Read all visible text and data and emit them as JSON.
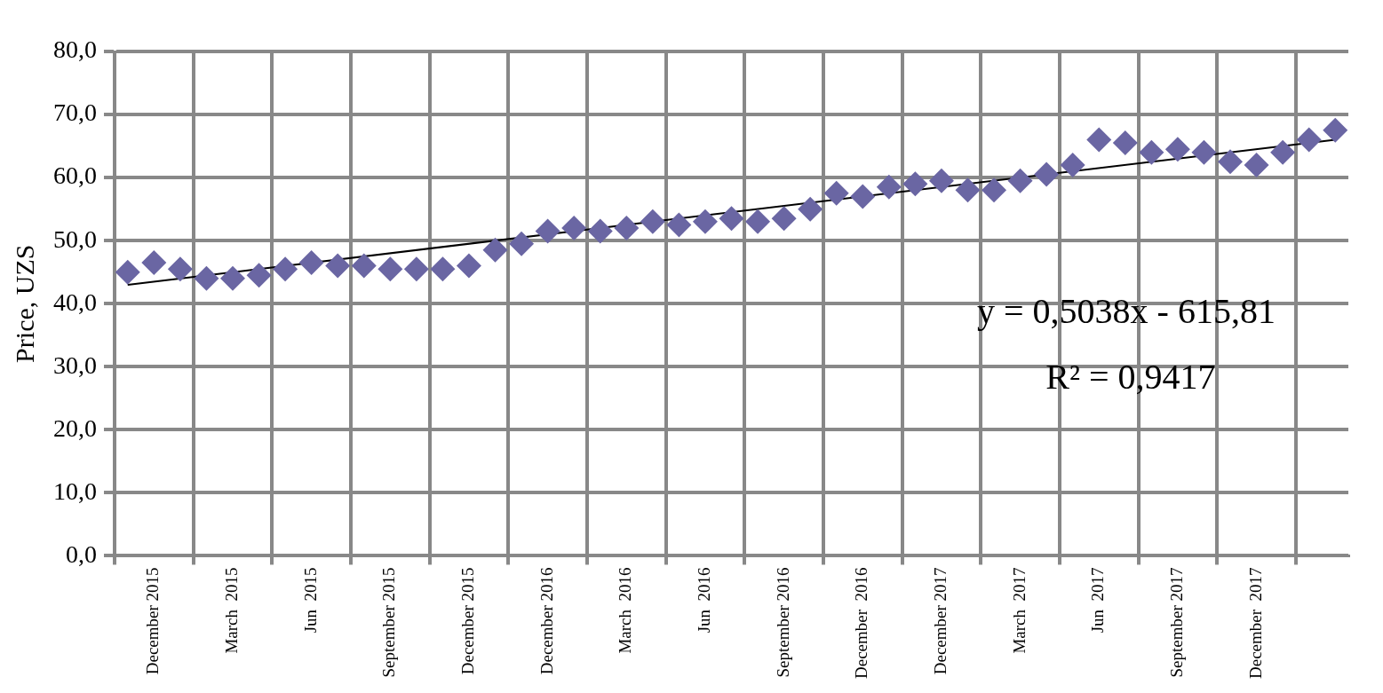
{
  "chart_data": {
    "type": "scatter",
    "ylabel": "Price, UZS",
    "categories": [
      null,
      "December 2015",
      null,
      null,
      "March  2015",
      null,
      null,
      "Jun  2015",
      null,
      null,
      "September 2015",
      null,
      null,
      "December 2015",
      null,
      null,
      "December 2016",
      null,
      null,
      "March  2016",
      null,
      null,
      "Jun  2016",
      null,
      null,
      "September 2016",
      null,
      null,
      "December  2016",
      null,
      null,
      "December 2017",
      null,
      null,
      "March  2017",
      null,
      null,
      "Jun  2017",
      null,
      null,
      "September 2017",
      null,
      null,
      "December  2017",
      null,
      null,
      null
    ],
    "series": [
      {
        "type": "scatter",
        "color": "#6a66a3",
        "marker": "diamond",
        "values": [
          45,
          46.5,
          45.5,
          44,
          44,
          44.5,
          45.5,
          46.5,
          46,
          46,
          45.5,
          45.5,
          45.5,
          46,
          48.5,
          49.5,
          51.5,
          52,
          51.5,
          52,
          53,
          52.5,
          53,
          53.5,
          53,
          53.5,
          55,
          57.5,
          57,
          58.5,
          59,
          59.5,
          58,
          58,
          59.5,
          60.5,
          62,
          66,
          65.5,
          64,
          64.5,
          64,
          62.5,
          62,
          64,
          66,
          67.5
        ]
      },
      {
        "type": "line",
        "color": "#000000",
        "marker": "none",
        "values": [
          43,
          null,
          null,
          null,
          null,
          null,
          null,
          null,
          null,
          null,
          null,
          null,
          null,
          null,
          null,
          null,
          null,
          null,
          null,
          null,
          null,
          null,
          null,
          null,
          null,
          null,
          null,
          null,
          null,
          null,
          null,
          null,
          null,
          null,
          null,
          null,
          null,
          null,
          null,
          null,
          null,
          null,
          null,
          null,
          null,
          null,
          66
        ]
      }
    ],
    "ylim": [
      0,
      80
    ],
    "yticks": [
      {
        "value": 0,
        "label": "0,0"
      },
      {
        "value": 10,
        "label": "10,0"
      },
      {
        "value": 20,
        "label": "20,0"
      },
      {
        "value": 30,
        "label": "30,0"
      },
      {
        "value": 40,
        "label": "40,0"
      },
      {
        "value": 50,
        "label": "50,0"
      },
      {
        "value": 60,
        "label": "60,0"
      },
      {
        "value": 70,
        "label": "70,0"
      },
      {
        "value": 80,
        "label": "80,0"
      }
    ],
    "grid": true,
    "legend": false,
    "annotations": [
      "y = 0,5038x - 615,81",
      "R² = 0,9417"
    ]
  }
}
